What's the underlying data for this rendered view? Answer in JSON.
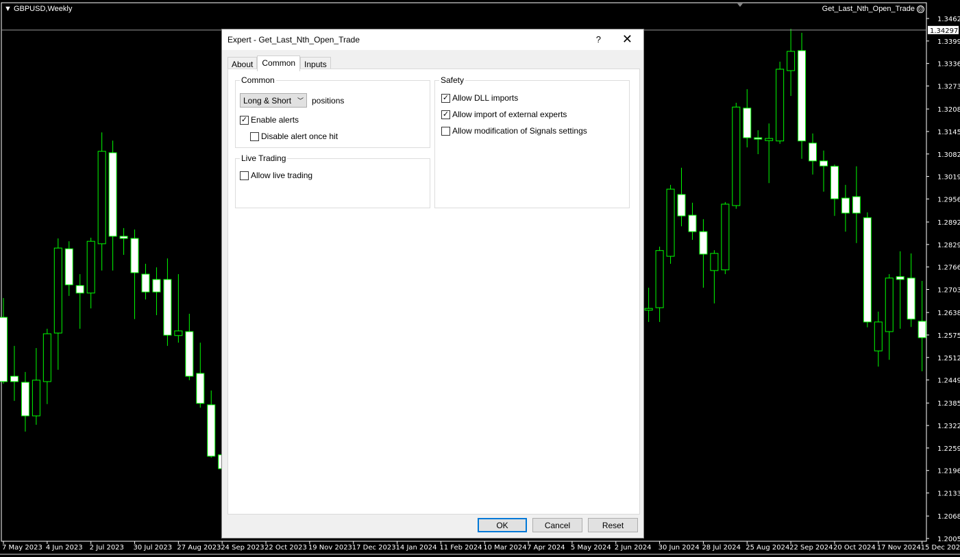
{
  "chart": {
    "symbol": "GBPUSD,Weekly",
    "expert_label": "Get_Last_Nth_Open_Trade",
    "expert_icon": "smiley-face-icon",
    "current_price": "1.34297"
  },
  "chart_data": {
    "type": "candlestick",
    "timeframe": "Weekly",
    "ylim": [
      1.20055,
      1.3462
    ],
    "y_ticks": [
      "1.34620",
      "1.33990",
      "1.33360",
      "1.32730",
      "1.32085",
      "1.31455",
      "1.30825",
      "1.30195",
      "1.29565",
      "1.28920",
      "1.28290",
      "1.27660",
      "1.27030",
      "1.26385",
      "1.25755",
      "1.25125",
      "1.24495",
      "1.23850",
      "1.23220",
      "1.22590",
      "1.21960",
      "1.21330",
      "1.20685",
      "1.20055"
    ],
    "x_ticks": [
      "7 May 2023",
      "4 Jun 2023",
      "2 Jul 2023",
      "30 Jul 2023",
      "27 Aug 2023",
      "24 Sep 2023",
      "22 Oct 2023",
      "19 Nov 2023",
      "17 Dec 2023",
      "14 Jan 2024",
      "11 Feb 2024",
      "10 Mar 2024",
      "7 Apr 2024",
      "5 May 2024",
      "2 Jun 2024",
      "30 Jun 2024",
      "28 Jul 2024",
      "25 Aug 2024",
      "22 Sep 2024",
      "20 Oct 2024",
      "17 Nov 2024",
      "15 Dec 2024"
    ],
    "colors": {
      "background": "#000000",
      "candle_border": "#00ff00",
      "bear_fill": "#ffffff",
      "bull_fill": "#000000",
      "axis": "#ffffff"
    },
    "candles": [
      {
        "date": "2023-05-07",
        "o": 1.2625,
        "h": 1.2679,
        "l": 1.2439,
        "c": 1.2445
      },
      {
        "date": "2023-05-14",
        "o": 1.246,
        "h": 1.2545,
        "l": 1.2391,
        "c": 1.2445
      },
      {
        "date": "2023-05-21",
        "o": 1.2443,
        "h": 1.2472,
        "l": 1.2305,
        "c": 1.2349
      },
      {
        "date": "2023-05-28",
        "o": 1.2349,
        "h": 1.2539,
        "l": 1.2324,
        "c": 1.2449
      },
      {
        "date": "2023-06-04",
        "o": 1.2445,
        "h": 1.2593,
        "l": 1.2382,
        "c": 1.2579
      },
      {
        "date": "2023-06-11",
        "o": 1.2581,
        "h": 1.2846,
        "l": 1.2478,
        "c": 1.2819
      },
      {
        "date": "2023-06-18",
        "o": 1.2817,
        "h": 1.2838,
        "l": 1.2685,
        "c": 1.2716
      },
      {
        "date": "2023-06-25",
        "o": 1.2714,
        "h": 1.2746,
        "l": 1.2593,
        "c": 1.2693
      },
      {
        "date": "2023-07-02",
        "o": 1.2693,
        "h": 1.2848,
        "l": 1.265,
        "c": 1.2838
      },
      {
        "date": "2023-07-09",
        "o": 1.2831,
        "h": 1.3143,
        "l": 1.2756,
        "c": 1.309
      },
      {
        "date": "2023-07-16",
        "o": 1.3086,
        "h": 1.312,
        "l": 1.2756,
        "c": 1.2852
      },
      {
        "date": "2023-07-23",
        "o": 1.2852,
        "h": 1.2875,
        "l": 1.28,
        "c": 1.2846
      },
      {
        "date": "2023-07-30",
        "o": 1.2846,
        "h": 1.2871,
        "l": 1.262,
        "c": 1.275
      },
      {
        "date": "2023-08-06",
        "o": 1.2746,
        "h": 1.2775,
        "l": 1.2675,
        "c": 1.2696
      },
      {
        "date": "2023-08-13",
        "o": 1.2731,
        "h": 1.2765,
        "l": 1.2631,
        "c": 1.2696
      },
      {
        "date": "2023-08-20",
        "o": 1.2731,
        "h": 1.279,
        "l": 1.2545,
        "c": 1.2575
      },
      {
        "date": "2023-08-27",
        "o": 1.2574,
        "h": 1.2746,
        "l": 1.2554,
        "c": 1.2587
      },
      {
        "date": "2023-09-03",
        "o": 1.2585,
        "h": 1.2635,
        "l": 1.2449,
        "c": 1.246
      },
      {
        "date": "2023-09-10",
        "o": 1.2468,
        "h": 1.2554,
        "l": 1.2372,
        "c": 1.2384
      },
      {
        "date": "2023-09-17",
        "o": 1.238,
        "h": 1.242,
        "l": 1.2232,
        "c": 1.2236
      },
      {
        "date": "2023-09-24",
        "o": 1.224,
        "h": 1.2267,
        "l": 1.219,
        "c": 1.2201
      },
      {
        "date": "2024-06-23",
        "o": 1.2645,
        "h": 1.2708,
        "l": 1.2612,
        "c": 1.265
      },
      {
        "date": "2024-06-30",
        "o": 1.2652,
        "h": 1.2823,
        "l": 1.2612,
        "c": 1.2812
      },
      {
        "date": "2024-07-07",
        "o": 1.2796,
        "h": 1.2996,
        "l": 1.2775,
        "c": 1.2984
      },
      {
        "date": "2024-07-14",
        "o": 1.2969,
        "h": 1.3044,
        "l": 1.288,
        "c": 1.2909
      },
      {
        "date": "2024-07-21",
        "o": 1.2911,
        "h": 1.2946,
        "l": 1.2842,
        "c": 1.2865
      },
      {
        "date": "2024-07-28",
        "o": 1.2865,
        "h": 1.29,
        "l": 1.2708,
        "c": 1.2802
      },
      {
        "date": "2024-08-04",
        "o": 1.2756,
        "h": 1.2813,
        "l": 1.2664,
        "c": 1.2804
      },
      {
        "date": "2024-08-11",
        "o": 1.2758,
        "h": 1.2948,
        "l": 1.2746,
        "c": 1.2942
      },
      {
        "date": "2024-08-18",
        "o": 1.2938,
        "h": 1.3226,
        "l": 1.2929,
        "c": 1.3214
      },
      {
        "date": "2024-08-25",
        "o": 1.3211,
        "h": 1.3264,
        "l": 1.3101,
        "c": 1.3128
      },
      {
        "date": "2024-09-01",
        "o": 1.3128,
        "h": 1.3149,
        "l": 1.3082,
        "c": 1.3124
      },
      {
        "date": "2024-09-08",
        "o": 1.312,
        "h": 1.3168,
        "l": 1.3001,
        "c": 1.3126
      },
      {
        "date": "2024-09-15",
        "o": 1.3119,
        "h": 1.3341,
        "l": 1.3111,
        "c": 1.332
      },
      {
        "date": "2024-09-22",
        "o": 1.3316,
        "h": 1.3433,
        "l": 1.3245,
        "c": 1.337
      },
      {
        "date": "2024-09-29",
        "o": 1.3372,
        "h": 1.3422,
        "l": 1.3069,
        "c": 1.3119
      },
      {
        "date": "2024-10-06",
        "o": 1.3113,
        "h": 1.314,
        "l": 1.3025,
        "c": 1.3063
      },
      {
        "date": "2024-10-13",
        "o": 1.3063,
        "h": 1.3092,
        "l": 1.2977,
        "c": 1.3049
      },
      {
        "date": "2024-10-20",
        "o": 1.3048,
        "h": 1.3053,
        "l": 1.2909,
        "c": 1.2957
      },
      {
        "date": "2024-10-27",
        "o": 1.2959,
        "h": 1.2996,
        "l": 1.2865,
        "c": 1.2917
      },
      {
        "date": "2024-11-03",
        "o": 1.2963,
        "h": 1.3048,
        "l": 1.2833,
        "c": 1.2917
      },
      {
        "date": "2024-11-10",
        "o": 1.2904,
        "h": 1.2919,
        "l": 1.2597,
        "c": 1.2612
      },
      {
        "date": "2024-11-17",
        "o": 1.2531,
        "h": 1.2641,
        "l": 1.2487,
        "c": 1.2612
      },
      {
        "date": "2024-11-24",
        "o": 1.2585,
        "h": 1.2746,
        "l": 1.2506,
        "c": 1.2735
      },
      {
        "date": "2024-12-01",
        "o": 1.2739,
        "h": 1.281,
        "l": 1.2593,
        "c": 1.2731
      },
      {
        "date": "2024-12-08",
        "o": 1.2735,
        "h": 1.2804,
        "l": 1.2598,
        "c": 1.262
      },
      {
        "date": "2024-12-15",
        "o": 1.2614,
        "h": 1.2727,
        "l": 1.2474,
        "c": 1.2568
      }
    ]
  },
  "dialog": {
    "title": "Expert - Get_Last_Nth_Open_Trade",
    "help": "?",
    "close": "✕",
    "tabs": [
      {
        "label": "About"
      },
      {
        "label": "Common",
        "active": true
      },
      {
        "label": "Inputs"
      }
    ],
    "common": {
      "title": "Common",
      "positions_select": "Long & Short",
      "positions_label": "positions",
      "enable_alerts": {
        "label": "Enable alerts",
        "checked": true
      },
      "disable_alert": {
        "label": "Disable alert once hit",
        "checked": false
      }
    },
    "live": {
      "title": "Live Trading",
      "allow_live": {
        "label": "Allow live trading",
        "checked": false
      }
    },
    "safety": {
      "title": "Safety",
      "dll": {
        "label": "Allow DLL imports",
        "checked": true
      },
      "external": {
        "label": "Allow import of external experts",
        "checked": true
      },
      "signals": {
        "label": "Allow modification of Signals settings",
        "checked": false
      }
    },
    "buttons": {
      "ok": "OK",
      "cancel": "Cancel",
      "reset": "Reset"
    }
  }
}
